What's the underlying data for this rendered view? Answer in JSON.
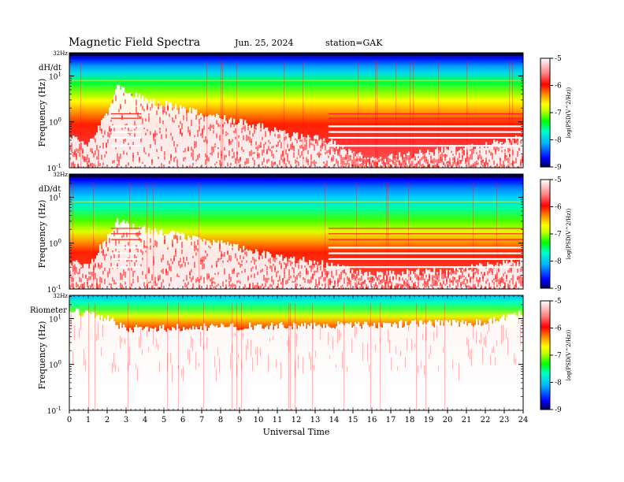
{
  "header": {
    "title": "Magnetic  Field  Spectra",
    "date": "Jun. 25, 2024",
    "station": "station=GAK"
  },
  "chart_data": [
    {
      "type": "heatmap",
      "panel_label": "dH/dt",
      "ylabel": "Frequency  (Hz)",
      "top_label": "32Hz",
      "x_range": [
        0,
        24
      ],
      "y_range_hz": [
        0.1,
        32
      ],
      "y_scale": "log",
      "y_ticks": [
        "10^1",
        "10^0",
        "10^-1"
      ],
      "colorbar": {
        "label": "log(PSD(V^2/Hz))",
        "range": [
          -9,
          -5
        ],
        "ticks": [
          "-5",
          "-6",
          "-7",
          "-8",
          "-9"
        ],
        "colors": [
          "#000050",
          "#0000ff",
          "#00b4ff",
          "#00ffc8",
          "#00ff00",
          "#c8ff00",
          "#ffff00",
          "#ff9600",
          "#ff0000",
          "#ffffff"
        ]
      },
      "noise_floor_hz": [
        {
          "t": 0,
          "f": 0.5
        },
        {
          "t": 1,
          "f": 0.3
        },
        {
          "t": 2,
          "f": 1.5
        },
        {
          "t": 2.5,
          "f": 6
        },
        {
          "t": 4,
          "f": 3
        },
        {
          "t": 6,
          "f": 2
        },
        {
          "t": 8,
          "f": 1.2
        },
        {
          "t": 10,
          "f": 0.8
        },
        {
          "t": 12,
          "f": 0.5
        },
        {
          "t": 13.6,
          "f": 0.4
        },
        {
          "t": 16,
          "f": 0.15
        },
        {
          "t": 20,
          "f": 0.25
        },
        {
          "t": 22,
          "f": 0.3
        },
        {
          "t": 24,
          "f": 0.5
        }
      ]
    },
    {
      "type": "heatmap",
      "panel_label": "dD/dt",
      "ylabel": "Frequency  (Hz)",
      "top_label": "32Hz",
      "x_range": [
        0,
        24
      ],
      "y_range_hz": [
        0.1,
        32
      ],
      "y_scale": "log",
      "y_ticks": [
        "10^1",
        "10^0",
        "10^-1"
      ],
      "colorbar": {
        "label": "log(PSD(V^2/Hz))",
        "range": [
          -9,
          -5
        ],
        "ticks": [
          "-5",
          "-6",
          "-7",
          "-8",
          "-9"
        ]
      },
      "noise_floor_hz": [
        {
          "t": 0,
          "f": 0.4
        },
        {
          "t": 1,
          "f": 0.3
        },
        {
          "t": 2.5,
          "f": 3
        },
        {
          "t": 4,
          "f": 2
        },
        {
          "t": 8,
          "f": 1
        },
        {
          "t": 10,
          "f": 0.6
        },
        {
          "t": 13.6,
          "f": 0.35
        },
        {
          "t": 16,
          "f": 0.2
        },
        {
          "t": 20,
          "f": 0.25
        },
        {
          "t": 24,
          "f": 0.4
        }
      ]
    },
    {
      "type": "heatmap",
      "panel_label": "Riometer",
      "ylabel": "Frequency  (Hz)",
      "top_label": "32Hz",
      "x_range": [
        0,
        24
      ],
      "y_range_hz": [
        0.1,
        32
      ],
      "y_scale": "log",
      "y_ticks": [
        "10^1",
        "10^0",
        "10^-1"
      ],
      "colorbar": {
        "label": "log(PSD(V^2/Hz))",
        "range": [
          -9,
          -5
        ],
        "ticks": [
          "-5",
          "-6",
          "-7",
          "-8",
          "-9"
        ]
      },
      "noise_floor_hz": [
        {
          "t": 0,
          "f": 15
        },
        {
          "t": 2,
          "f": 10
        },
        {
          "t": 3,
          "f": 6
        },
        {
          "t": 12,
          "f": 7
        },
        {
          "t": 22,
          "f": 8
        },
        {
          "t": 24,
          "f": 14
        }
      ]
    }
  ],
  "x_axis": {
    "label": "Universal  Time",
    "ticks": [
      "0",
      "1",
      "2",
      "3",
      "4",
      "5",
      "6",
      "7",
      "8",
      "9",
      "10",
      "11",
      "12",
      "13",
      "14",
      "15",
      "16",
      "17",
      "18",
      "19",
      "20",
      "21",
      "22",
      "23",
      "24"
    ]
  }
}
